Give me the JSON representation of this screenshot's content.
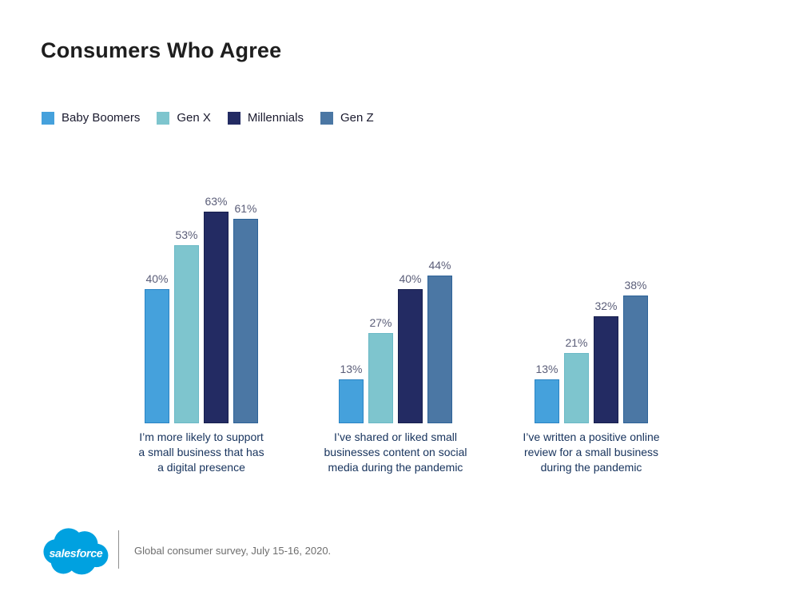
{
  "title": "Consumers Who Agree",
  "colors": {
    "title_text": "#1e1e1e",
    "value_label": "#5a5d78",
    "category_label": "#16325c",
    "footer_text": "#6e6e6e",
    "logo_blue": "#00a1e0"
  },
  "chart_data": {
    "type": "bar",
    "title": "Consumers Who Agree",
    "value_suffix": "%",
    "grid": false,
    "legend_position": "top-left",
    "ylim": [
      0,
      70
    ],
    "categories": [
      "I’m more likely to support a small business that has a digital presence",
      "I’ve shared or liked small businesses content on social media during the pandemic",
      "I’ve written a positive online review for a small business during the pandemic"
    ],
    "series": [
      {
        "name": "Baby Boomers",
        "color": "#45a1dc",
        "border_color": "#2b84c4",
        "values": [
          40,
          13,
          13
        ]
      },
      {
        "name": "Gen X",
        "color": "#7ec5ce",
        "border_color": "#6bb9c6",
        "values": [
          53,
          27,
          21
        ]
      },
      {
        "name": "Millennials",
        "color": "#232b63",
        "border_color": "#171f4e",
        "values": [
          63,
          40,
          32
        ]
      },
      {
        "name": "Gen Z",
        "color": "#4b77a4",
        "border_color": "#2e6398",
        "values": [
          61,
          44,
          38
        ]
      }
    ]
  },
  "category_lines": [
    [
      "I’m more likely to support",
      "a small business that has",
      "a digital presence"
    ],
    [
      "I’ve shared or liked small",
      "businesses content on social",
      "media during the pandemic"
    ],
    [
      "I’ve written a positive online",
      "review for a small business",
      "during the pandemic"
    ]
  ],
  "footer": {
    "logo_text": "salesforce",
    "source_note": "Global consumer survey, July 15-16, 2020."
  }
}
